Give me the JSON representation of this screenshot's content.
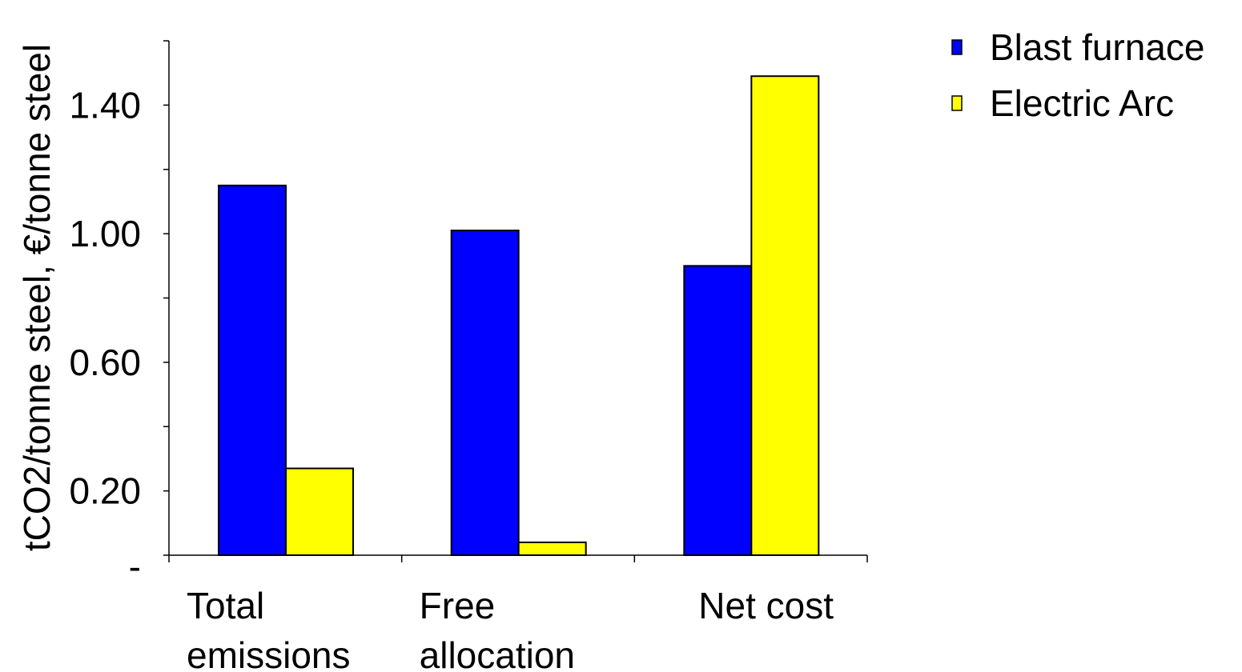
{
  "chart_data": {
    "type": "bar",
    "title": "",
    "ylabel": "tCO2/tonne steel, €/tonne steel",
    "xlabel": "",
    "categories": [
      [
        "Total",
        "emissions"
      ],
      [
        "Free",
        "allocation"
      ],
      [
        "Net cost"
      ]
    ],
    "series": [
      {
        "name": "Blast furnace",
        "color": "#0000FF",
        "values": [
          1.15,
          1.01,
          0.9
        ]
      },
      {
        "name": "Electric Arc",
        "color": "#FFFF00",
        "values": [
          0.27,
          0.04,
          1.49
        ]
      }
    ],
    "ylim": [
      0,
      1.6
    ],
    "y_ticks": [
      {
        "value": 0,
        "label": "-"
      },
      {
        "value": 0.2,
        "label": "0.20"
      },
      {
        "value": 0.6,
        "label": "0.60"
      },
      {
        "value": 1.0,
        "label": "1.00"
      },
      {
        "value": 1.4,
        "label": "1.40"
      }
    ],
    "y_minor_ticks": [
      0.4,
      0.8,
      1.2,
      1.6
    ],
    "grid": false,
    "legend_position": "top-right",
    "bar_outline_color": "#000000"
  }
}
